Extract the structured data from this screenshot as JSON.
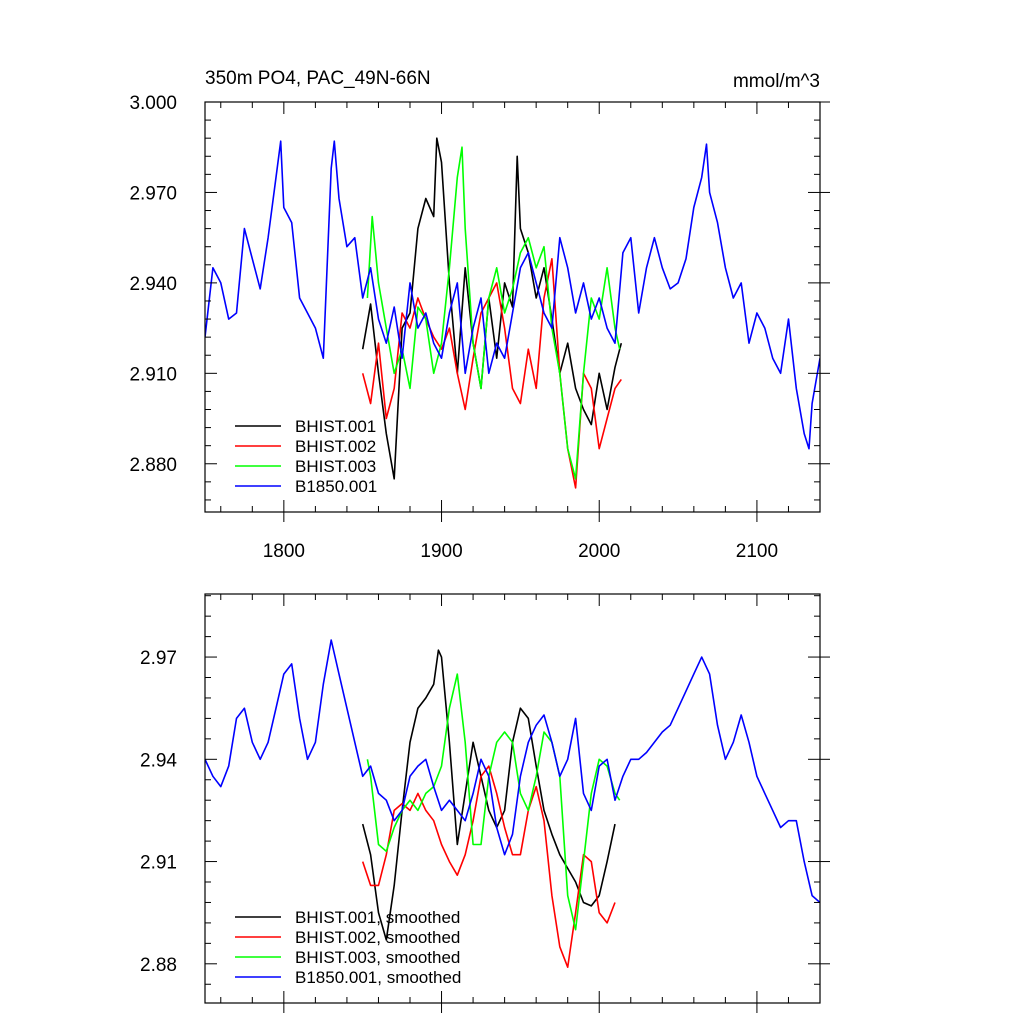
{
  "chart_data": [
    {
      "type": "line",
      "title": "350m PO4, PAC_49N-66N",
      "units": "mmol/m^3",
      "xlim": [
        1750,
        2140
      ],
      "ylim": [
        2.864,
        3.0
      ],
      "xticks": [
        1800,
        1900,
        2000,
        2100
      ],
      "xtick_labels": [
        "1800",
        "1900",
        "2000",
        "2100"
      ],
      "yticks": [
        2.88,
        2.91,
        2.94,
        2.97,
        3.0
      ],
      "ytick_labels": [
        "2.880",
        "2.910",
        "2.940",
        "2.970",
        "3.000"
      ],
      "legend_position": "lower-left",
      "series": [
        {
          "name": "BHIST.001",
          "color": "#000000",
          "x": [
            1850,
            1855,
            1860,
            1865,
            1870,
            1875,
            1880,
            1885,
            1890,
            1895,
            1897,
            1900,
            1905,
            1910,
            1915,
            1920,
            1925,
            1930,
            1935,
            1940,
            1945,
            1948,
            1950,
            1955,
            1960,
            1965,
            1970,
            1975,
            1980,
            1985,
            1990,
            1995,
            2000,
            2005,
            2010,
            2014
          ],
          "y": [
            2.918,
            2.933,
            2.91,
            2.89,
            2.875,
            2.925,
            2.93,
            2.958,
            2.968,
            2.962,
            2.988,
            2.98,
            2.94,
            2.91,
            2.945,
            2.92,
            2.905,
            2.935,
            2.915,
            2.94,
            2.932,
            2.982,
            2.958,
            2.95,
            2.935,
            2.945,
            2.928,
            2.91,
            2.92,
            2.905,
            2.898,
            2.893,
            2.91,
            2.898,
            2.912,
            2.92
          ]
        },
        {
          "name": "BHIST.002",
          "color": "#ff0000",
          "x": [
            1850,
            1855,
            1860,
            1865,
            1870,
            1875,
            1880,
            1885,
            1890,
            1895,
            1900,
            1905,
            1910,
            1915,
            1920,
            1925,
            1930,
            1935,
            1940,
            1945,
            1950,
            1955,
            1960,
            1965,
            1970,
            1975,
            1980,
            1985,
            1990,
            1995,
            2000,
            2005,
            2010,
            2014
          ],
          "y": [
            2.91,
            2.9,
            2.92,
            2.895,
            2.905,
            2.93,
            2.925,
            2.935,
            2.928,
            2.922,
            2.918,
            2.925,
            2.91,
            2.898,
            2.915,
            2.93,
            2.935,
            2.94,
            2.925,
            2.905,
            2.9,
            2.918,
            2.905,
            2.935,
            2.948,
            2.91,
            2.885,
            2.872,
            2.91,
            2.905,
            2.885,
            2.895,
            2.905,
            2.908
          ]
        },
        {
          "name": "BHIST.003",
          "color": "#00ff00",
          "x": [
            1853,
            1856,
            1860,
            1865,
            1870,
            1875,
            1880,
            1885,
            1890,
            1895,
            1900,
            1905,
            1910,
            1913,
            1915,
            1920,
            1925,
            1930,
            1935,
            1940,
            1945,
            1950,
            1955,
            1960,
            1965,
            1970,
            1975,
            1980,
            1985,
            1990,
            1995,
            2000,
            2005,
            2010,
            2013
          ],
          "y": [
            2.935,
            2.962,
            2.94,
            2.925,
            2.91,
            2.918,
            2.905,
            2.932,
            2.928,
            2.91,
            2.92,
            2.945,
            2.975,
            2.985,
            2.958,
            2.92,
            2.905,
            2.935,
            2.945,
            2.93,
            2.938,
            2.95,
            2.955,
            2.945,
            2.952,
            2.925,
            2.91,
            2.885,
            2.875,
            2.91,
            2.935,
            2.928,
            2.945,
            2.925,
            2.918
          ]
        },
        {
          "name": "B1850.001",
          "color": "#0000ff",
          "x": [
            1750,
            1755,
            1760,
            1765,
            1770,
            1775,
            1780,
            1785,
            1790,
            1795,
            1798,
            1800,
            1805,
            1810,
            1815,
            1820,
            1825,
            1830,
            1832,
            1835,
            1840,
            1845,
            1850,
            1855,
            1860,
            1865,
            1870,
            1875,
            1880,
            1885,
            1890,
            1895,
            1900,
            1905,
            1910,
            1915,
            1920,
            1925,
            1930,
            1935,
            1940,
            1945,
            1950,
            1955,
            1960,
            1965,
            1970,
            1975,
            1980,
            1985,
            1990,
            1995,
            2000,
            2005,
            2010,
            2015,
            2020,
            2025,
            2030,
            2035,
            2040,
            2045,
            2050,
            2055,
            2060,
            2065,
            2068,
            2070,
            2075,
            2080,
            2085,
            2090,
            2095,
            2100,
            2105,
            2110,
            2115,
            2120,
            2125,
            2130,
            2133,
            2135,
            2140
          ],
          "y": [
            2.922,
            2.945,
            2.94,
            2.928,
            2.93,
            2.958,
            2.948,
            2.938,
            2.955,
            2.975,
            2.987,
            2.965,
            2.96,
            2.935,
            2.93,
            2.925,
            2.915,
            2.978,
            2.987,
            2.968,
            2.952,
            2.955,
            2.935,
            2.945,
            2.928,
            2.92,
            2.932,
            2.915,
            2.94,
            2.925,
            2.93,
            2.92,
            2.915,
            2.93,
            2.94,
            2.91,
            2.925,
            2.935,
            2.91,
            2.92,
            2.915,
            2.93,
            2.945,
            2.95,
            2.94,
            2.93,
            2.925,
            2.955,
            2.945,
            2.93,
            2.94,
            2.928,
            2.935,
            2.925,
            2.92,
            2.95,
            2.955,
            2.93,
            2.945,
            2.955,
            2.945,
            2.938,
            2.94,
            2.948,
            2.965,
            2.975,
            2.986,
            2.97,
            2.96,
            2.945,
            2.935,
            2.94,
            2.92,
            2.93,
            2.925,
            2.915,
            2.91,
            2.928,
            2.905,
            2.89,
            2.885,
            2.9,
            2.915
          ]
        }
      ]
    },
    {
      "type": "line",
      "title": "",
      "xlim": [
        1750,
        2140
      ],
      "ylim": [
        2.8685,
        2.9885
      ],
      "xticks": [
        1800,
        1900,
        2000,
        2100
      ],
      "yticks": [
        2.88,
        2.91,
        2.94,
        2.97
      ],
      "ytick_labels": [
        "2.88",
        "2.91",
        "2.94",
        "2.97"
      ],
      "legend_position": "lower-left",
      "series": [
        {
          "name": "BHIST.001, smoothed",
          "color": "#000000",
          "x": [
            1850,
            1855,
            1860,
            1865,
            1870,
            1875,
            1880,
            1885,
            1890,
            1895,
            1898,
            1900,
            1905,
            1910,
            1915,
            1920,
            1925,
            1930,
            1935,
            1940,
            1945,
            1950,
            1955,
            1960,
            1965,
            1970,
            1975,
            1980,
            1985,
            1990,
            1995,
            2000,
            2005,
            2010
          ],
          "y": [
            2.921,
            2.912,
            2.895,
            2.887,
            2.903,
            2.925,
            2.945,
            2.955,
            2.958,
            2.962,
            2.972,
            2.97,
            2.945,
            2.915,
            2.93,
            2.945,
            2.935,
            2.925,
            2.92,
            2.925,
            2.945,
            2.955,
            2.952,
            2.938,
            2.925,
            2.918,
            2.912,
            2.908,
            2.904,
            2.898,
            2.897,
            2.9,
            2.91,
            2.921
          ]
        },
        {
          "name": "BHIST.002, smoothed",
          "color": "#ff0000",
          "x": [
            1850,
            1855,
            1860,
            1865,
            1870,
            1875,
            1880,
            1885,
            1890,
            1895,
            1900,
            1905,
            1910,
            1915,
            1920,
            1925,
            1930,
            1935,
            1940,
            1945,
            1950,
            1955,
            1960,
            1965,
            1970,
            1975,
            1980,
            1985,
            1990,
            1995,
            2000,
            2005,
            2010
          ],
          "y": [
            2.91,
            2.903,
            2.903,
            2.912,
            2.925,
            2.927,
            2.925,
            2.93,
            2.925,
            2.922,
            2.915,
            2.91,
            2.906,
            2.912,
            2.922,
            2.935,
            2.938,
            2.93,
            2.92,
            2.912,
            2.912,
            2.925,
            2.932,
            2.922,
            2.9,
            2.885,
            2.879,
            2.895,
            2.912,
            2.91,
            2.895,
            2.892,
            2.898
          ]
        },
        {
          "name": "BHIST.003, smoothed",
          "color": "#00ff00",
          "x": [
            1853,
            1855,
            1860,
            1865,
            1870,
            1875,
            1880,
            1885,
            1890,
            1895,
            1900,
            1905,
            1910,
            1915,
            1920,
            1925,
            1930,
            1935,
            1940,
            1945,
            1950,
            1955,
            1960,
            1965,
            1970,
            1975,
            1980,
            1985,
            1990,
            1995,
            2000,
            2005,
            2010,
            2013
          ],
          "y": [
            2.94,
            2.935,
            2.915,
            2.913,
            2.92,
            2.925,
            2.928,
            2.925,
            2.93,
            2.932,
            2.938,
            2.955,
            2.965,
            2.945,
            2.915,
            2.915,
            2.935,
            2.945,
            2.948,
            2.945,
            2.93,
            2.925,
            2.935,
            2.948,
            2.945,
            2.935,
            2.9,
            2.89,
            2.91,
            2.93,
            2.94,
            2.938,
            2.93,
            2.928
          ]
        },
        {
          "name": "B1850.001, smoothed",
          "color": "#0000ff",
          "x": [
            1750,
            1755,
            1760,
            1765,
            1770,
            1775,
            1780,
            1785,
            1790,
            1795,
            1800,
            1805,
            1810,
            1815,
            1820,
            1825,
            1830,
            1835,
            1840,
            1845,
            1850,
            1855,
            1860,
            1865,
            1870,
            1875,
            1880,
            1885,
            1890,
            1895,
            1900,
            1905,
            1910,
            1915,
            1920,
            1925,
            1930,
            1935,
            1940,
            1945,
            1950,
            1955,
            1960,
            1965,
            1970,
            1975,
            1980,
            1985,
            1990,
            1995,
            2000,
            2005,
            2010,
            2015,
            2020,
            2025,
            2030,
            2035,
            2040,
            2045,
            2050,
            2055,
            2060,
            2065,
            2070,
            2075,
            2080,
            2085,
            2090,
            2095,
            2100,
            2105,
            2110,
            2115,
            2120,
            2125,
            2130,
            2135,
            2140
          ],
          "y": [
            2.94,
            2.935,
            2.932,
            2.938,
            2.952,
            2.955,
            2.945,
            2.94,
            2.945,
            2.955,
            2.965,
            2.968,
            2.952,
            2.94,
            2.945,
            2.962,
            2.975,
            2.965,
            2.955,
            2.945,
            2.935,
            2.938,
            2.93,
            2.928,
            2.922,
            2.925,
            2.935,
            2.938,
            2.94,
            2.932,
            2.925,
            2.928,
            2.925,
            2.922,
            2.93,
            2.94,
            2.935,
            2.92,
            2.912,
            2.918,
            2.935,
            2.945,
            2.95,
            2.953,
            2.945,
            2.935,
            2.94,
            2.952,
            2.93,
            2.925,
            2.938,
            2.94,
            2.928,
            2.935,
            2.94,
            2.94,
            2.942,
            2.945,
            2.948,
            2.95,
            2.955,
            2.96,
            2.965,
            2.97,
            2.965,
            2.95,
            2.94,
            2.945,
            2.953,
            2.945,
            2.935,
            2.93,
            2.925,
            2.92,
            2.922,
            2.922,
            2.91,
            2.9,
            2.898
          ]
        }
      ]
    }
  ]
}
